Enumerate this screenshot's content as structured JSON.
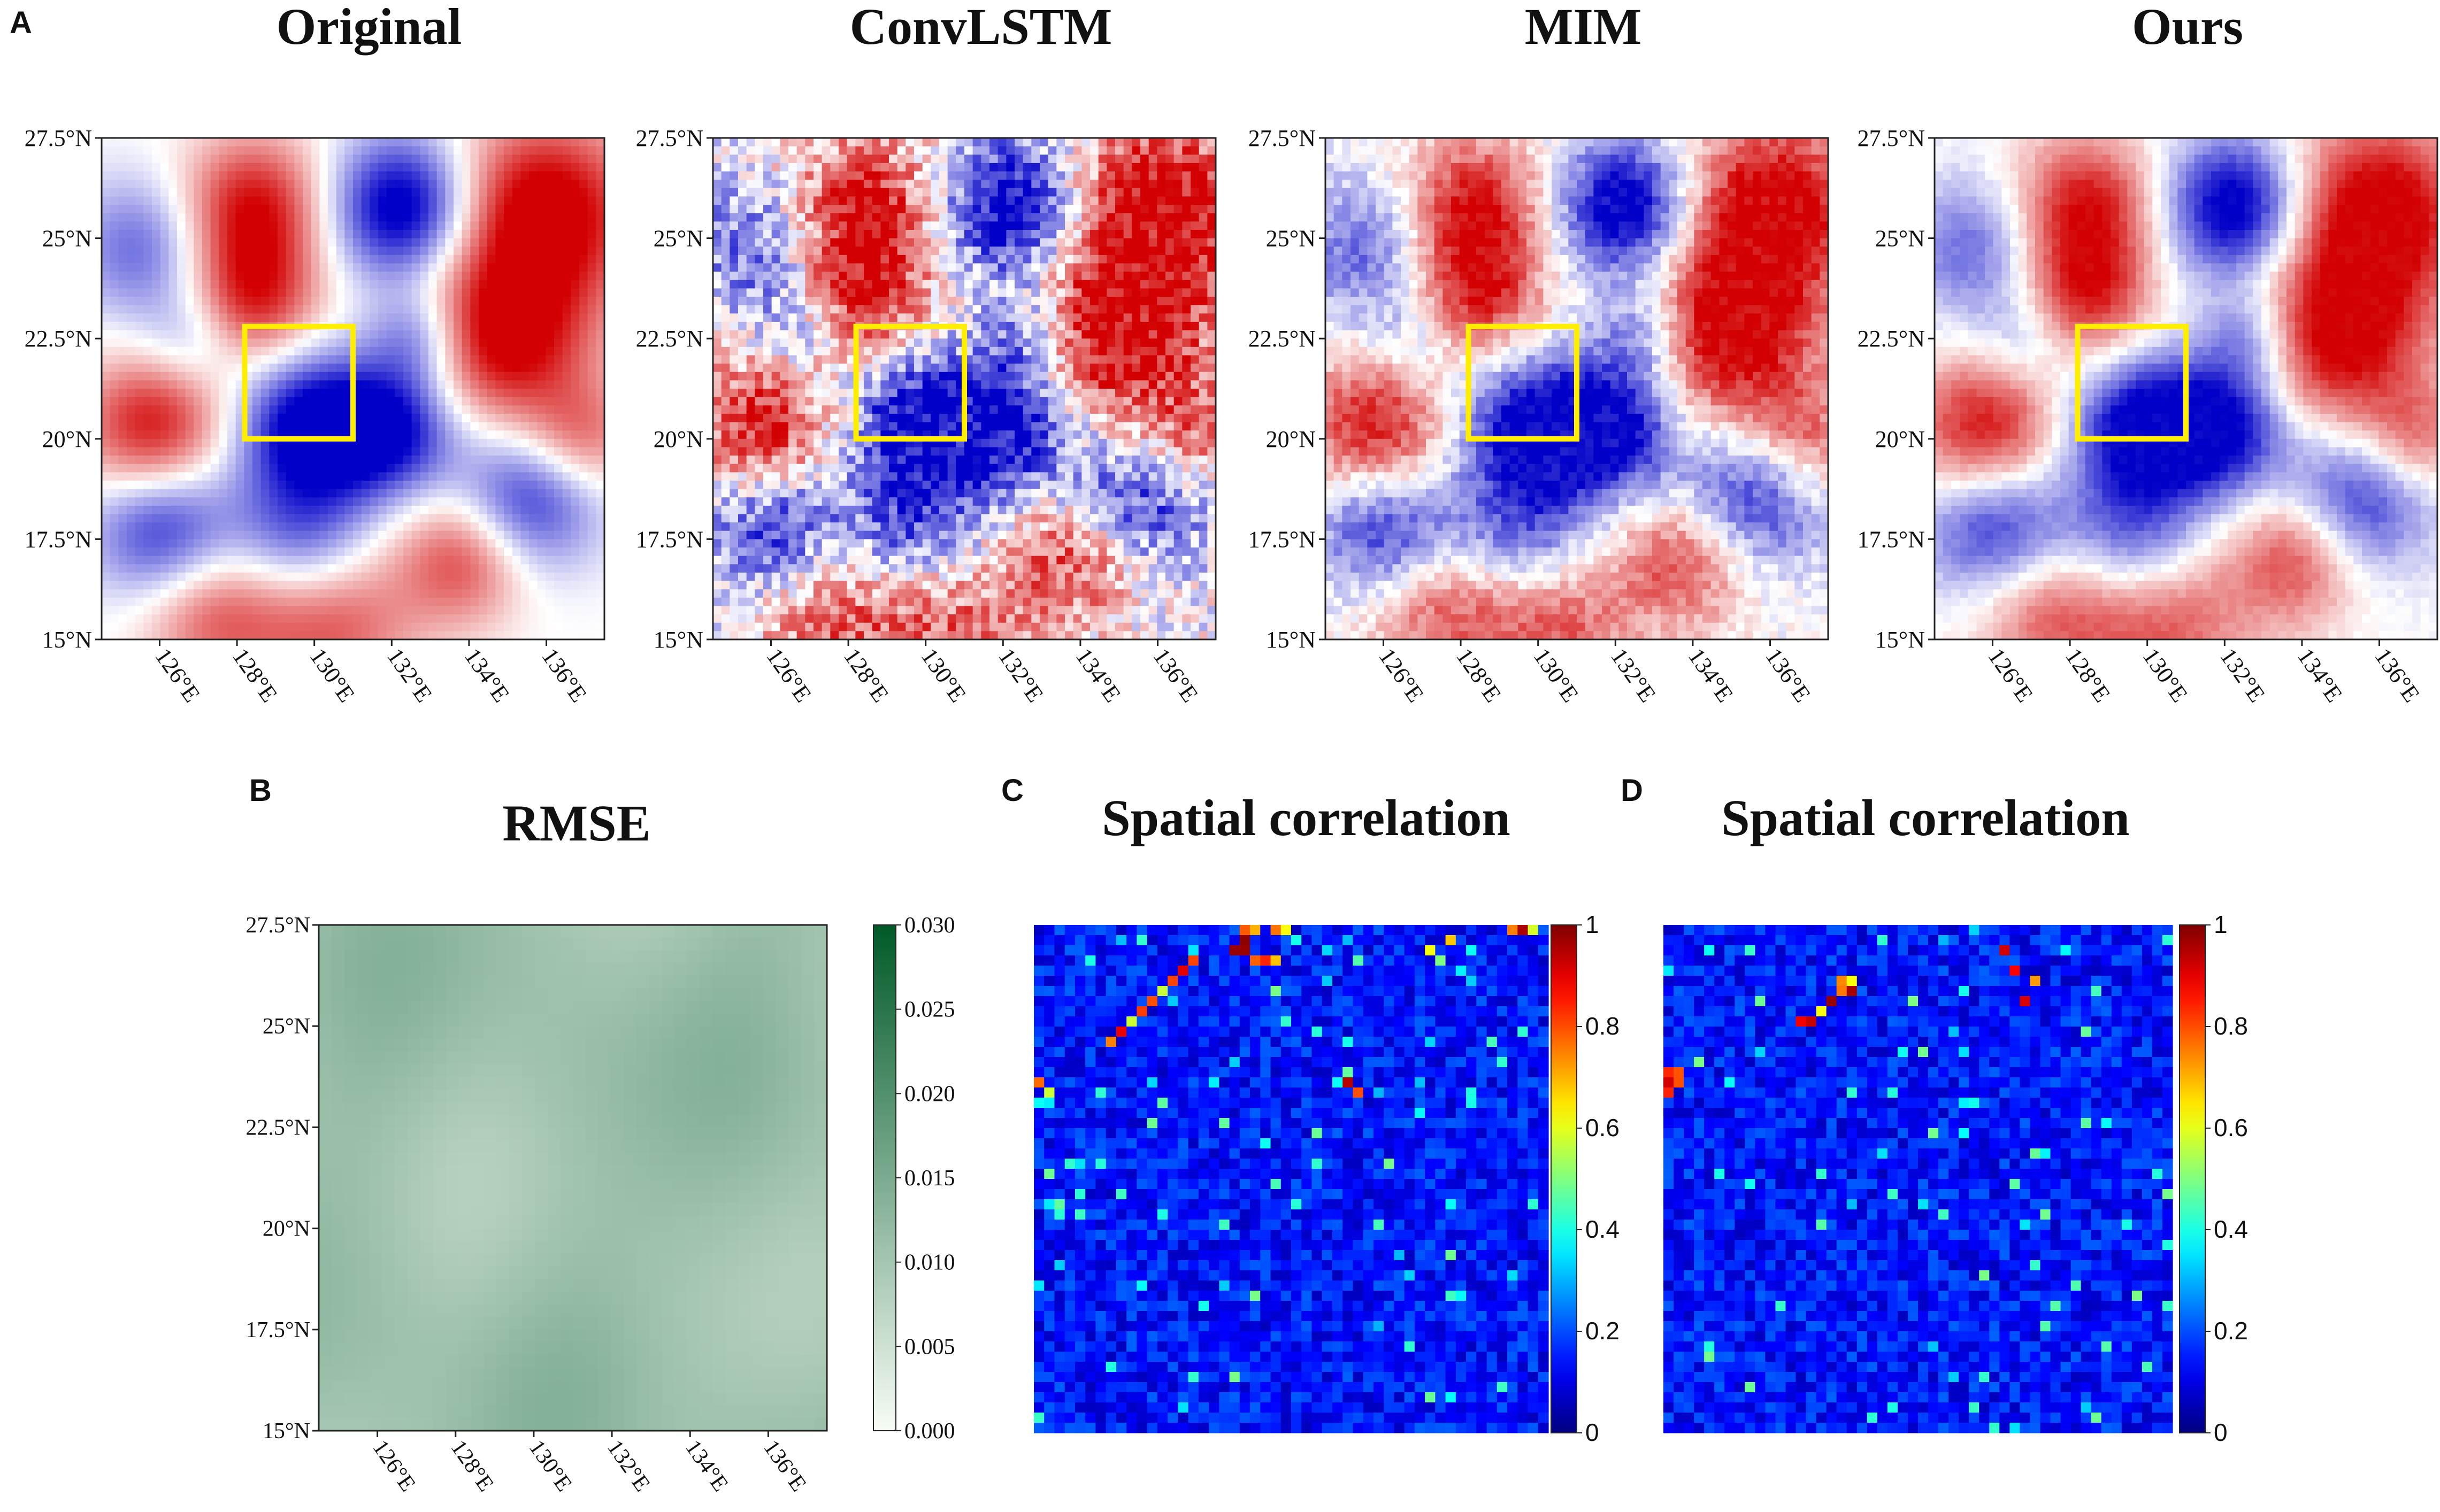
{
  "panel_letters": {
    "a": "A",
    "b": "B",
    "c": "C",
    "d": "D"
  },
  "chart_data": [
    {
      "type": "heatmap",
      "panel": "A",
      "title": "Original",
      "ylabels": [
        "27.5°N",
        "25°N",
        "22.5°N",
        "20°N",
        "17.5°N",
        "15°N"
      ],
      "xlabels": [
        "126°E",
        "128°E",
        "130°E",
        "132°E",
        "134°E",
        "136°E"
      ],
      "lat_range": [
        15,
        27.5
      ],
      "lon_range": [
        124.5,
        137.5
      ],
      "colormap": "bwr",
      "highlight_box": {
        "lon": [
          128.2,
          131.0
        ],
        "lat": [
          20.0,
          22.8
        ],
        "color": "#ffee00"
      },
      "noise": 0
    },
    {
      "type": "heatmap",
      "panel": "A",
      "title": "ConvLSTM",
      "ylabels": [
        "27.5°N",
        "25°N",
        "22.5°N",
        "20°N",
        "17.5°N",
        "15°N"
      ],
      "xlabels": [
        "126°E",
        "128°E",
        "130°E",
        "132°E",
        "134°E",
        "136°E"
      ],
      "lat_range": [
        15,
        27.5
      ],
      "lon_range": [
        124.5,
        137.5
      ],
      "colormap": "bwr",
      "highlight_box": {
        "lon": [
          128.2,
          131.0
        ],
        "lat": [
          20.0,
          22.8
        ],
        "color": "#ffee00"
      },
      "noise": 0.35
    },
    {
      "type": "heatmap",
      "panel": "A",
      "title": "MIM",
      "ylabels": [
        "27.5°N",
        "25°N",
        "22.5°N",
        "20°N",
        "17.5°N",
        "15°N"
      ],
      "xlabels": [
        "126°E",
        "128°E",
        "130°E",
        "132°E",
        "134°E",
        "136°E"
      ],
      "lat_range": [
        15,
        27.5
      ],
      "lon_range": [
        124.5,
        137.5
      ],
      "colormap": "bwr",
      "highlight_box": {
        "lon": [
          128.2,
          131.0
        ],
        "lat": [
          20.0,
          22.8
        ],
        "color": "#ffee00"
      },
      "noise": 0.15
    },
    {
      "type": "heatmap",
      "panel": "A",
      "title": "Ours",
      "ylabels": [
        "27.5°N",
        "25°N",
        "22.5°N",
        "20°N",
        "17.5°N",
        "15°N"
      ],
      "xlabels": [
        "126°E",
        "128°E",
        "130°E",
        "132°E",
        "134°E",
        "136°E"
      ],
      "lat_range": [
        15,
        27.5
      ],
      "lon_range": [
        124.5,
        137.5
      ],
      "colormap": "bwr",
      "highlight_box": {
        "lon": [
          128.2,
          131.0
        ],
        "lat": [
          20.0,
          22.8
        ],
        "color": "#ffee00"
      },
      "noise": 0.05
    },
    {
      "type": "heatmap",
      "panel": "B",
      "title": "RMSE",
      "ylabels": [
        "27.5°N",
        "25°N",
        "22.5°N",
        "20°N",
        "17.5°N",
        "15°N"
      ],
      "xlabels": [
        "126°E",
        "128°E",
        "130°E",
        "132°E",
        "134°E",
        "136°E"
      ],
      "colormap": "Greens",
      "colorbar": {
        "ticks": [
          "0.030",
          "0.025",
          "0.020",
          "0.015",
          "0.010",
          "0.005",
          "0.000"
        ],
        "range": [
          0,
          0.03
        ]
      },
      "value_range_observed": [
        0.008,
        0.014
      ]
    },
    {
      "type": "heatmap",
      "panel": "C",
      "title": "Spatial correlation",
      "colormap": "jet",
      "grid": 50,
      "colorbar": {
        "ticks": [
          "1",
          "0.8",
          "0.6",
          "0.4",
          "0.2",
          "0"
        ],
        "range": [
          0,
          1
        ]
      }
    },
    {
      "type": "heatmap",
      "panel": "D",
      "title": "Spatial correlation",
      "colormap": "jet",
      "grid": 50,
      "colorbar": {
        "ticks": [
          "1",
          "0.8",
          "0.6",
          "0.4",
          "0.2",
          "0"
        ],
        "range": [
          0,
          1
        ]
      }
    }
  ],
  "colors": {
    "box": "#ffee00",
    "axis": "#222222",
    "text": "#111111"
  }
}
